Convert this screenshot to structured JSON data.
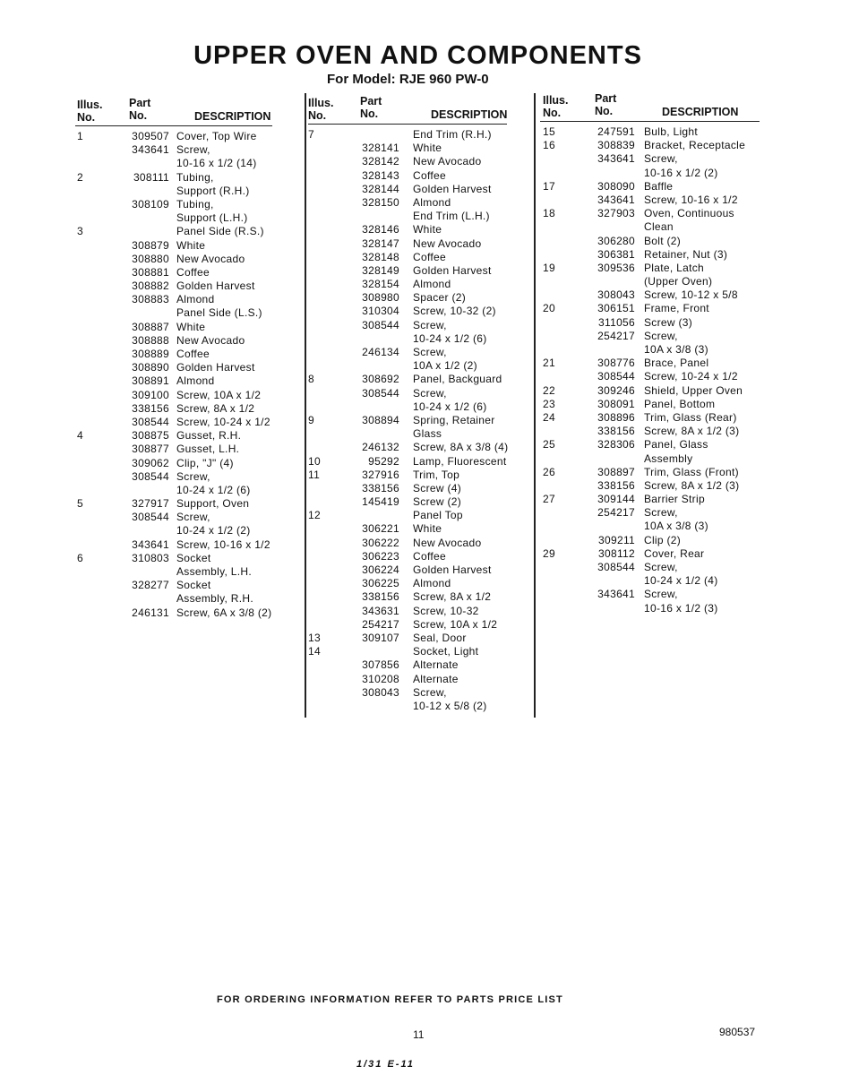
{
  "title": "UPPER OVEN AND COMPONENTS",
  "subtitle": "For Model: RJE 960 PW-0",
  "headers": {
    "illus": "Illus.",
    "no": "No.",
    "part": "Part",
    "description": "DESCRIPTION"
  },
  "columns": [
    {
      "rows": [
        [
          "1",
          "309507",
          "Cover, Top Wire"
        ],
        [
          "",
          "343641",
          "Screw,"
        ],
        [
          "",
          "",
          "10-16 x 1/2 (14)"
        ],
        [
          "2",
          "308111",
          "Tubing,"
        ],
        [
          "",
          "",
          "Support (R.H.)"
        ],
        [
          "",
          "308109",
          "Tubing,"
        ],
        [
          "",
          "",
          "Support (L.H.)"
        ],
        [
          "3",
          "",
          "Panel Side (R.S.)"
        ],
        [
          "",
          "308879",
          "White"
        ],
        [
          "",
          "308880",
          "New Avocado"
        ],
        [
          "",
          "308881",
          "Coffee"
        ],
        [
          "",
          "308882",
          "Golden Harvest"
        ],
        [
          "",
          "308883",
          "Almond"
        ],
        [
          "",
          "",
          "Panel Side (L.S.)"
        ],
        [
          "",
          "308887",
          "White"
        ],
        [
          "",
          "308888",
          "New Avocado"
        ],
        [
          "",
          "308889",
          "Coffee"
        ],
        [
          "",
          "308890",
          "Golden Harvest"
        ],
        [
          "",
          "308891",
          "Almond"
        ],
        [
          "",
          "309100",
          "Screw, 10A x 1/2"
        ],
        [
          "",
          "338156",
          "Screw, 8A x 1/2"
        ],
        [
          "",
          "308544",
          "Screw, 10-24 x 1/2"
        ],
        [
          "4",
          "308875",
          "Gusset, R.H."
        ],
        [
          "",
          "308877",
          "Gusset, L.H."
        ],
        [
          "",
          "309062",
          "Clip, \"J\" (4)"
        ],
        [
          "",
          "308544",
          "Screw,"
        ],
        [
          "",
          "",
          "10-24 x 1/2 (6)"
        ],
        [
          "5",
          "327917",
          "Support, Oven"
        ],
        [
          "",
          "308544",
          "Screw,"
        ],
        [
          "",
          "",
          "10-24 x 1/2 (2)"
        ],
        [
          "",
          "343641",
          "Screw, 10-16 x 1/2"
        ],
        [
          "6",
          "310803",
          "Socket"
        ],
        [
          "",
          "",
          "Assembly, L.H."
        ],
        [
          "",
          "328277",
          "Socket"
        ],
        [
          "",
          "",
          "Assembly, R.H."
        ],
        [
          "",
          "246131",
          "Screw, 6A x 3/8 (2)"
        ]
      ]
    },
    {
      "rows": [
        [
          "7",
          "",
          "End Trim (R.H.)"
        ],
        [
          "",
          "328141",
          "White"
        ],
        [
          "",
          "328142",
          "New Avocado"
        ],
        [
          "",
          "328143",
          "Coffee"
        ],
        [
          "",
          "328144",
          "Golden Harvest"
        ],
        [
          "",
          "328150",
          "Almond"
        ],
        [
          "",
          "",
          "End Trim (L.H.)"
        ],
        [
          "",
          "328146",
          "White"
        ],
        [
          "",
          "328147",
          "New Avocado"
        ],
        [
          "",
          "328148",
          "Coffee"
        ],
        [
          "",
          "328149",
          "Golden Harvest"
        ],
        [
          "",
          "328154",
          "Almond"
        ],
        [
          "",
          "308980",
          "Spacer (2)"
        ],
        [
          "",
          "310304",
          "Screw, 10-32 (2)"
        ],
        [
          "",
          "308544",
          "Screw,"
        ],
        [
          "",
          "",
          "10-24 x 1/2 (6)"
        ],
        [
          "",
          "246134",
          "Screw,"
        ],
        [
          "",
          "",
          "10A x 1/2 (2)"
        ],
        [
          "8",
          "308692",
          "Panel, Backguard"
        ],
        [
          "",
          "308544",
          "Screw,"
        ],
        [
          "",
          "",
          "10-24 x 1/2 (6)"
        ],
        [
          "9",
          "308894",
          "Spring, Retainer"
        ],
        [
          "",
          "",
          "Glass"
        ],
        [
          "",
          "246132",
          "Screw, 8A x 3/8 (4)"
        ],
        [
          "10",
          "95292",
          "Lamp, Fluorescent"
        ],
        [
          "11",
          "327916",
          "Trim, Top"
        ],
        [
          "",
          "338156",
          "Screw (4)"
        ],
        [
          "",
          "145419",
          "Screw (2)"
        ],
        [
          "12",
          "",
          "Panel Top"
        ],
        [
          "",
          "306221",
          "White"
        ],
        [
          "",
          "306222",
          "New Avocado"
        ],
        [
          "",
          "306223",
          "Coffee"
        ],
        [
          "",
          "306224",
          "Golden Harvest"
        ],
        [
          "",
          "306225",
          "Almond"
        ],
        [
          "",
          "338156",
          "Screw, 8A x 1/2"
        ],
        [
          "",
          "343631",
          "Screw, 10-32"
        ],
        [
          "",
          "254217",
          "Screw, 10A x 1/2"
        ],
        [
          "13",
          "309107",
          "Seal, Door"
        ],
        [
          "14",
          "",
          "Socket, Light"
        ],
        [
          "",
          "307856",
          "Alternate"
        ],
        [
          "",
          "310208",
          "Alternate"
        ],
        [
          "",
          "308043",
          "Screw,"
        ],
        [
          "",
          "",
          "10-12 x 5/8 (2)"
        ]
      ]
    },
    {
      "rows": [
        [
          "15",
          "247591",
          "Bulb, Light"
        ],
        [
          "16",
          "308839",
          "Bracket, Receptacle"
        ],
        [
          "",
          "343641",
          "Screw,"
        ],
        [
          "",
          "",
          "10-16 x 1/2 (2)"
        ],
        [
          "17",
          "308090",
          "Baffle"
        ],
        [
          "",
          "343641",
          "Screw, 10-16 x 1/2"
        ],
        [
          "18",
          "327903",
          "Oven, Continuous"
        ],
        [
          "",
          "",
          "Clean"
        ],
        [
          "",
          "306280",
          "Bolt (2)"
        ],
        [
          "",
          "306381",
          "Retainer, Nut (3)"
        ],
        [
          "19",
          "309536",
          "Plate, Latch"
        ],
        [
          "",
          "",
          "(Upper Oven)"
        ],
        [
          "",
          "308043",
          "Screw, 10-12 x 5/8"
        ],
        [
          "20",
          "306151",
          "Frame, Front"
        ],
        [
          "",
          "311056",
          "Screw (3)"
        ],
        [
          "",
          "254217",
          "Screw,"
        ],
        [
          "",
          "",
          "10A x 3/8 (3)"
        ],
        [
          "21",
          "308776",
          "Brace, Panel"
        ],
        [
          "",
          "308544",
          "Screw, 10-24 x 1/2"
        ],
        [
          "22",
          "309246",
          "Shield, Upper Oven"
        ],
        [
          "23",
          "308091",
          "Panel, Bottom"
        ],
        [
          "24",
          "308896",
          "Trim, Glass (Rear)"
        ],
        [
          "",
          "338156",
          "Screw, 8A x 1/2 (3)"
        ],
        [
          "25",
          "328306",
          "Panel, Glass"
        ],
        [
          "",
          "",
          "Assembly"
        ],
        [
          "26",
          "308897",
          "Trim, Glass (Front)"
        ],
        [
          "",
          "338156",
          "Screw, 8A x 1/2 (3)"
        ],
        [
          "27",
          "309144",
          "Barrier Strip"
        ],
        [
          "",
          "254217",
          "Screw,"
        ],
        [
          "",
          "",
          "10A x 3/8 (3)"
        ],
        [
          "",
          "309211",
          "Clip (2)"
        ],
        [
          "29",
          "308112",
          "Cover, Rear"
        ],
        [
          "",
          "308544",
          "Screw,"
        ],
        [
          "",
          "",
          "10-24 x 1/2 (4)"
        ],
        [
          "",
          "343641",
          "Screw,"
        ],
        [
          "",
          "",
          "10-16 x 1/2 (3)"
        ]
      ]
    }
  ],
  "footer": {
    "ordering_note": "FOR ORDERING INFORMATION REFER TO PARTS PRICE LIST",
    "page_number": "11",
    "document_number": "980537",
    "handwritten_mark": "1/31 E-11"
  }
}
